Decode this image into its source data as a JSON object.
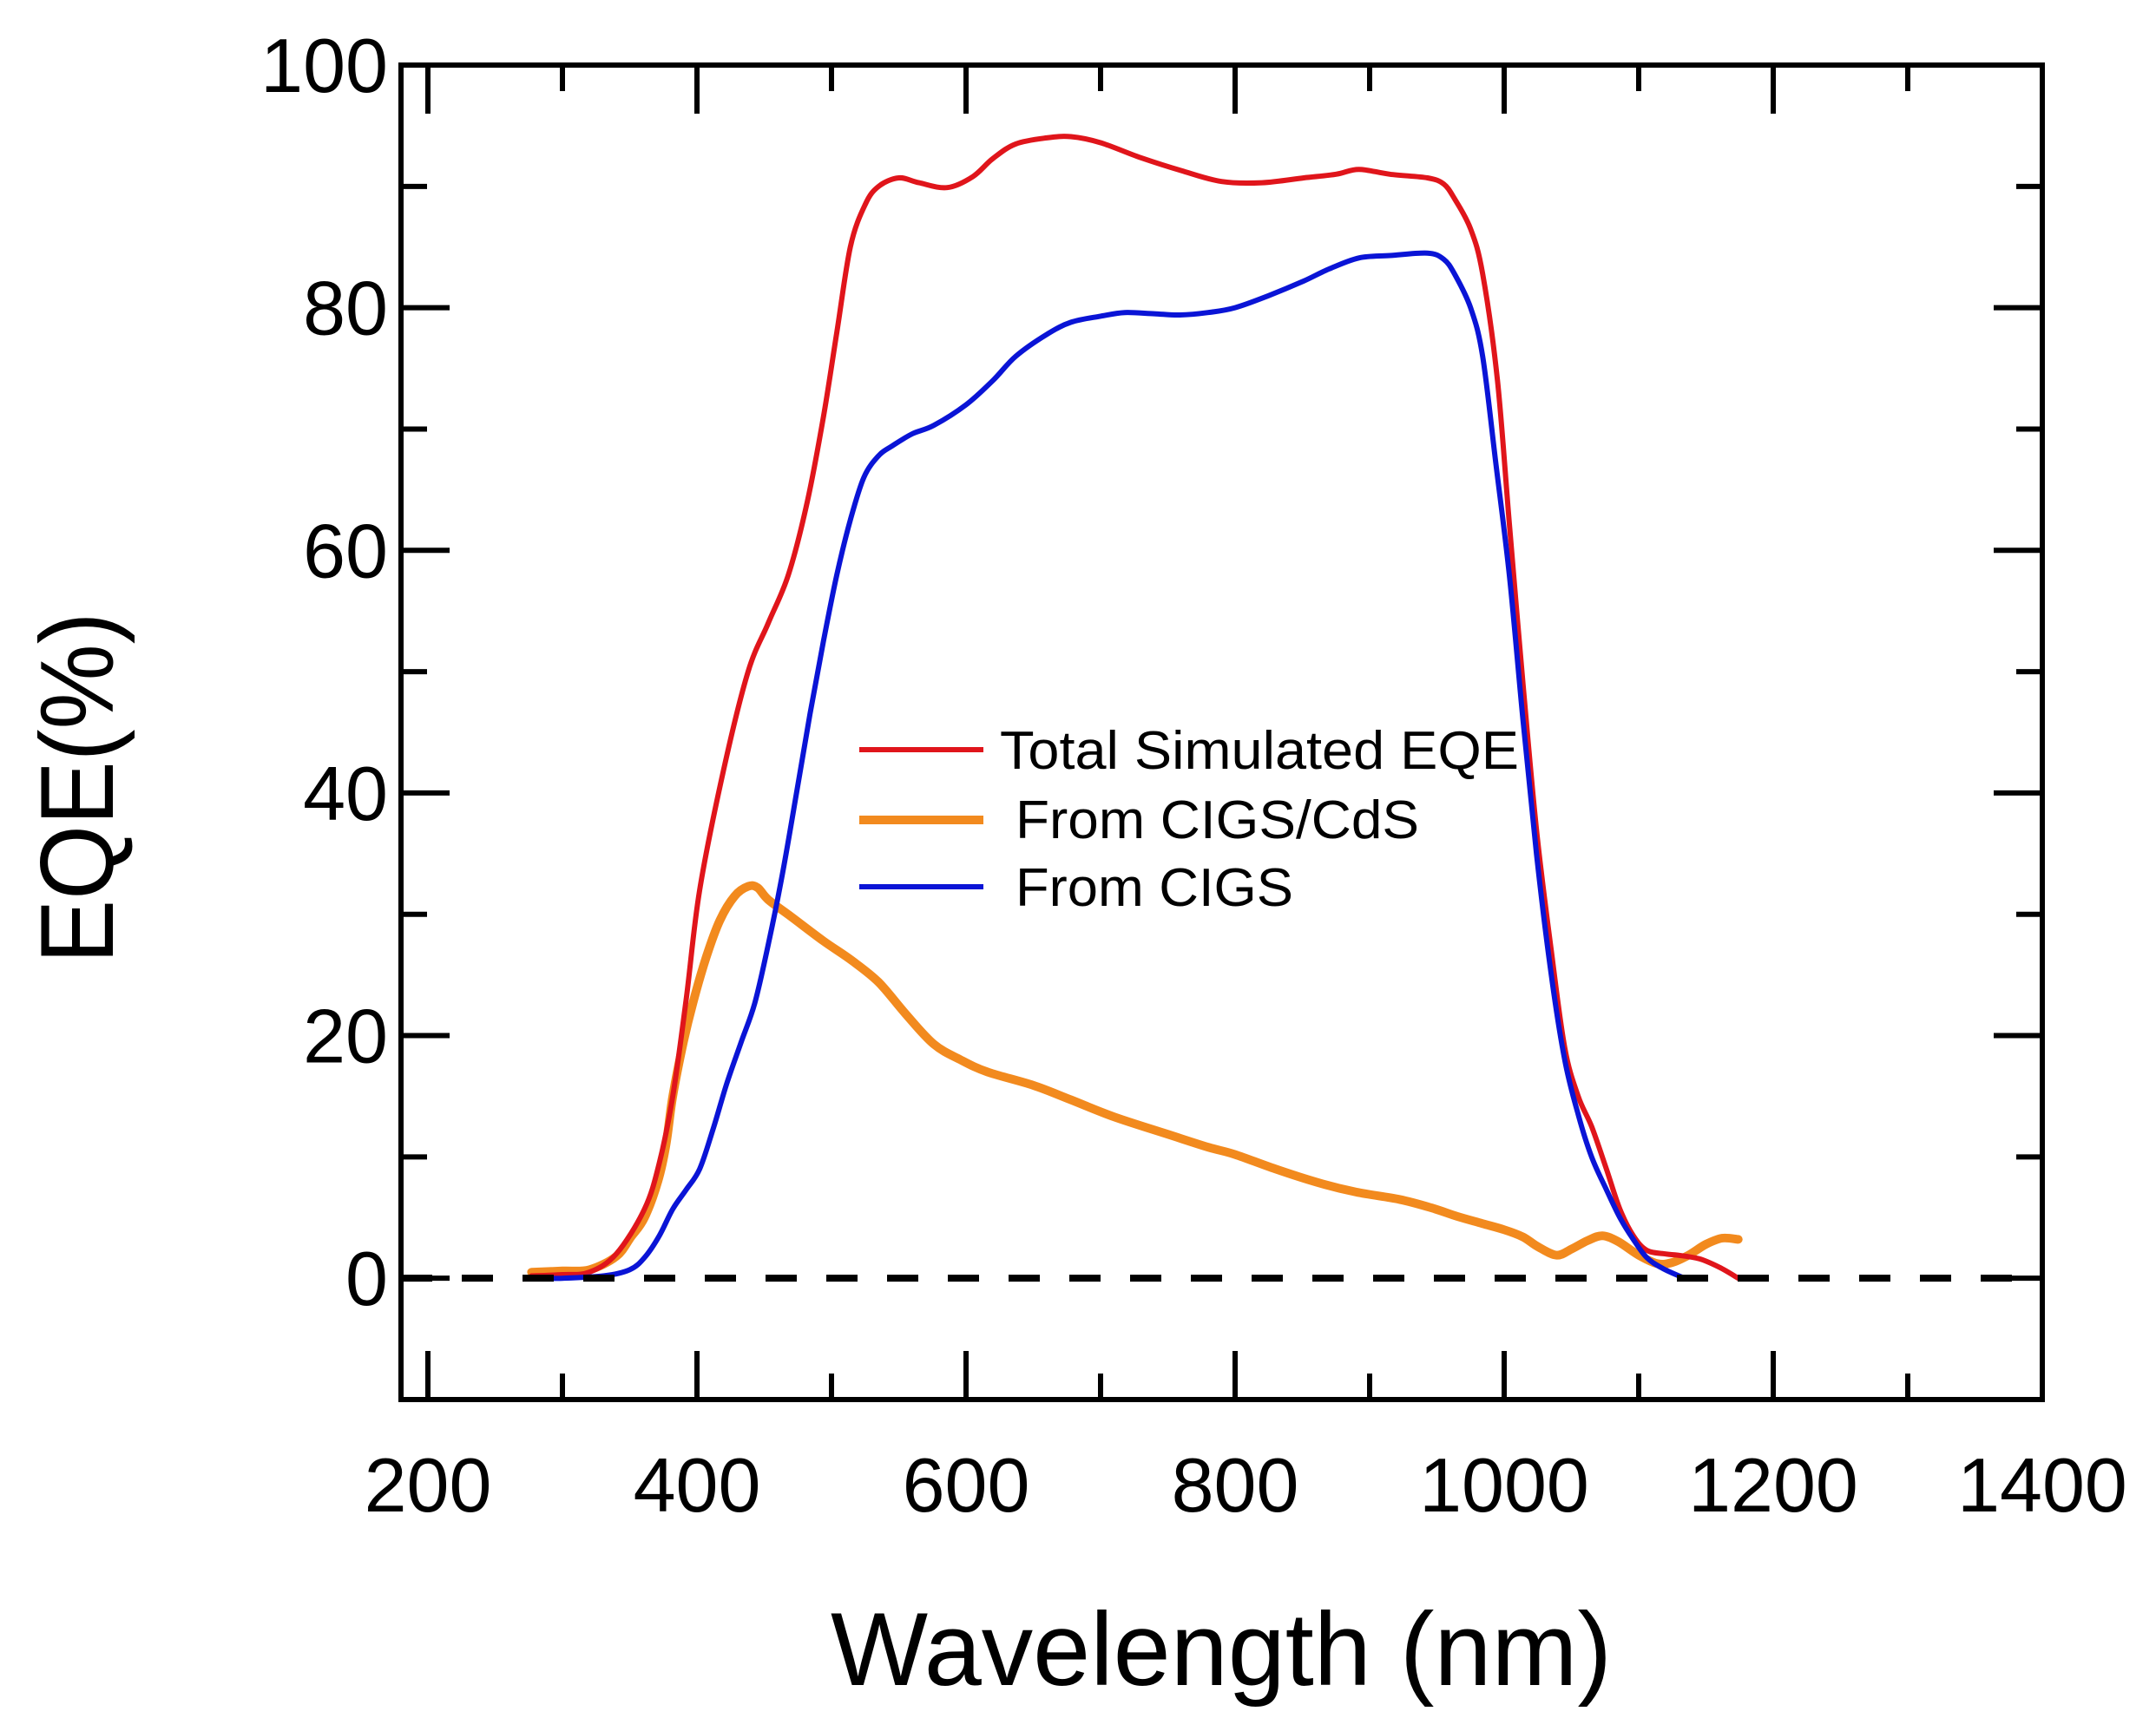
{
  "chart_data": {
    "type": "line",
    "title": "",
    "xlabel": "Wavelength (nm)",
    "ylabel": "EQE(%)",
    "xlim": [
      180,
      1400
    ],
    "ylim": [
      -10,
      100
    ],
    "xticks": [
      200,
      400,
      600,
      800,
      1000,
      1200,
      1400
    ],
    "xtick_labels": [
      "200",
      "400",
      "600",
      "800",
      "1000",
      "1200",
      "1400"
    ],
    "xminor_ticks": [
      300,
      500,
      700,
      900,
      1100,
      1300
    ],
    "yticks": [
      0,
      20,
      40,
      60,
      80,
      100
    ],
    "ytick_labels": [
      "0",
      "20",
      "40",
      "60",
      "80",
      "100"
    ],
    "yminor_ticks": [
      -10,
      10,
      30,
      50,
      70,
      90
    ],
    "grid": false,
    "reference_line": {
      "y": 0,
      "style": "dashed",
      "color": "#000000"
    },
    "legend": {
      "position": "center",
      "entries": [
        "Total Simulated EQE",
        "From CIGS/CdS",
        "From CIGS"
      ]
    },
    "series": [
      {
        "name": "Total Simulated EQE",
        "color": "#e0151b",
        "x": [
          277,
          300,
          320,
          340,
          361,
          372,
          382,
          392,
          402,
          420,
          438,
          453,
          468,
          482,
          494,
          504,
          514,
          525,
          535,
          550,
          565,
          586,
          605,
          620,
          637,
          660,
          678,
          700,
          729,
          760,
          790,
          820,
          851,
          875,
          892,
          915,
          943,
          955,
          963,
          975,
          984,
          995,
          1004,
          1014,
          1024,
          1035,
          1045,
          1055,
          1065,
          1076,
          1086,
          1096,
          1106,
          1120,
          1129,
          1145,
          1160,
          1174
        ],
        "y": [
          0.2,
          0.3,
          0.5,
          2.0,
          5.7,
          9.5,
          15.0,
          23.0,
          32.0,
          42.0,
          50.0,
          54.0,
          58.0,
          64.0,
          71.0,
          78.0,
          85.0,
          88.5,
          90.0,
          90.7,
          90.3,
          89.9,
          90.8,
          92.3,
          93.5,
          94.0,
          94.1,
          93.6,
          92.4,
          91.3,
          90.4,
          90.3,
          90.7,
          91.0,
          91.4,
          91.0,
          90.7,
          90.2,
          89.0,
          86.5,
          82.8,
          74.0,
          62.0,
          49.0,
          37.0,
          27.0,
          19.0,
          15.0,
          12.5,
          9.0,
          5.7,
          3.5,
          2.3,
          2.0,
          1.9,
          1.6,
          0.9,
          0.0
        ]
      },
      {
        "name": "From CIGS/CdS",
        "color": "#f28a1e",
        "x": [
          277,
          300,
          320,
          340,
          351,
          361,
          371,
          377,
          382,
          390,
          397,
          407,
          417,
          428,
          438,
          445,
          453,
          470,
          494,
          515,
          535,
          555,
          576,
          596,
          616,
          650,
          678,
          710,
          749,
          780,
          800,
          830,
          861,
          890,
          922,
          946,
          965,
          984,
          1000,
          1014,
          1025,
          1039,
          1050,
          1062,
          1073,
          1085,
          1100,
          1114,
          1125,
          1137,
          1150,
          1162,
          1174
        ],
        "y": [
          0.5,
          0.6,
          0.7,
          1.8,
          3.4,
          5.0,
          8.0,
          11.0,
          15.0,
          19.5,
          22.7,
          26.5,
          29.5,
          31.5,
          32.3,
          32.2,
          31.2,
          29.8,
          27.8,
          26.2,
          24.4,
          21.8,
          19.3,
          18.0,
          17.0,
          15.9,
          14.7,
          13.3,
          11.9,
          10.8,
          10.2,
          9.0,
          7.9,
          7.1,
          6.5,
          5.8,
          5.1,
          4.5,
          4.0,
          3.4,
          2.6,
          1.9,
          2.4,
          3.1,
          3.5,
          3.0,
          1.9,
          1.2,
          1.3,
          1.9,
          2.8,
          3.3,
          3.2
        ]
      },
      {
        "name": "From CIGS",
        "color": "#0a14d6",
        "x": [
          277,
          300,
          331,
          350,
          361,
          372,
          382,
          392,
          402,
          412,
          422,
          433,
          443,
          453,
          463,
          474,
          484,
          494,
          504,
          514,
          524,
          535,
          545,
          560,
          576,
          600,
          620,
          637,
          660,
          678,
          700,
          718,
          740,
          759,
          780,
          800,
          825,
          851,
          870,
          892,
          915,
          943,
          955,
          963,
          975,
          984,
          994,
          1004,
          1014,
          1024,
          1035,
          1045,
          1055,
          1065,
          1076,
          1086,
          1096,
          1106,
          1118,
          1134
        ],
        "y": [
          0.0,
          0.0,
          0.2,
          0.7,
          1.7,
          3.5,
          5.7,
          7.3,
          9.0,
          12.3,
          16.0,
          19.5,
          22.7,
          27.5,
          33.0,
          40.0,
          46.5,
          52.5,
          58.0,
          62.5,
          66.0,
          67.8,
          68.6,
          69.6,
          70.3,
          72.0,
          74.0,
          76.0,
          77.8,
          78.8,
          79.3,
          79.6,
          79.5,
          79.4,
          79.6,
          80.0,
          81.0,
          82.2,
          83.2,
          84.1,
          84.3,
          84.5,
          84.0,
          82.8,
          80.0,
          76.0,
          67.0,
          57.8,
          46.0,
          35.0,
          25.0,
          18.0,
          13.5,
          10.0,
          7.3,
          5.0,
          3.2,
          1.7,
          0.8,
          0.0
        ]
      }
    ]
  }
}
